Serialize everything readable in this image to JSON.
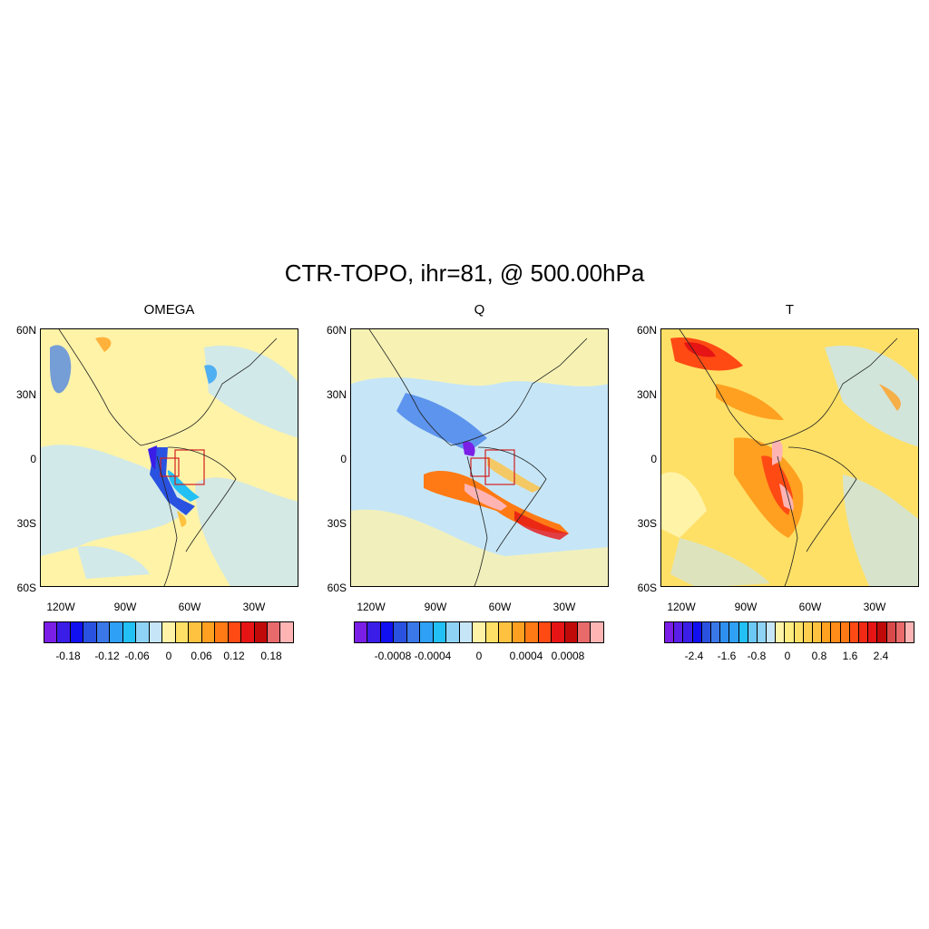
{
  "title": "CTR-TOPO, ihr=81, @ 500.00hPa",
  "panels": [
    {
      "name": "OMEGA",
      "colorbar_labels": [
        "-0.18",
        "-0.12",
        "-0.06",
        "0",
        "0.06",
        "0.12",
        "0.18"
      ],
      "colors": [
        "#7b1fe6",
        "#3a1ee8",
        "#1010f0",
        "#2a52e0",
        "#3a78ea",
        "#2ea0f5",
        "#22c0f5",
        "#8ed2f5",
        "#c6e6f7",
        "#fff3a8",
        "#ffe066",
        "#ffc240",
        "#ffa020",
        "#ff7a14",
        "#ff4a14",
        "#e61414",
        "#c00a0a",
        "#e86a6a",
        "#ffb4b4"
      ]
    },
    {
      "name": "Q",
      "colorbar_labels": [
        "-0.0008",
        "-0.0004",
        "0",
        "0.0004",
        "0.0008"
      ],
      "colors": [
        "#7b1fe6",
        "#3a1ee8",
        "#1010f0",
        "#2a52e0",
        "#3a78ea",
        "#2ea0f5",
        "#22c0f5",
        "#8ed2f5",
        "#c6e6f7",
        "#fff3a8",
        "#ffe066",
        "#ffc240",
        "#ffa020",
        "#ff7a14",
        "#ff4a14",
        "#e61414",
        "#c00a0a",
        "#e86a6a",
        "#ffb4b4"
      ]
    },
    {
      "name": "T",
      "colorbar_labels": [
        "-2.4",
        "-1.6",
        "-0.8",
        "0",
        "0.8",
        "1.6",
        "2.4"
      ],
      "colors": [
        "#7b1fe6",
        "#5a1ee8",
        "#3a1ee8",
        "#1010f0",
        "#2a52e0",
        "#3a78ea",
        "#2e90f0",
        "#2ea0f5",
        "#22c0f5",
        "#6cc8f5",
        "#8ed2f5",
        "#c6e6f7",
        "#fff3a8",
        "#ffec80",
        "#ffe066",
        "#ffd050",
        "#ffc240",
        "#ffa020",
        "#ff8c18",
        "#ff7a14",
        "#ff4a14",
        "#f02a14",
        "#e61414",
        "#c00a0a",
        "#d84a4a",
        "#e86a6a",
        "#ffb4b4"
      ]
    }
  ],
  "lat_labels": [
    "60N",
    "30N",
    "0",
    "30S",
    "60S"
  ],
  "lon_labels": [
    "120W",
    "90W",
    "60W",
    "30W"
  ]
}
